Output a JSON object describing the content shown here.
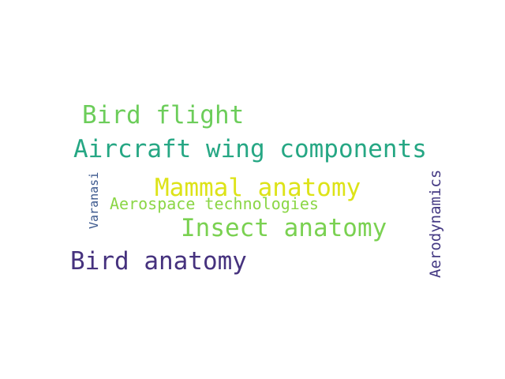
{
  "words": [
    {
      "text": "Bird flight",
      "color": "#6ccd5a"
    },
    {
      "text": "Aircraft wing components",
      "color": "#26a784"
    },
    {
      "text": "Mammal anatomy",
      "color": "#dde318"
    },
    {
      "text": "Aerospace technologies",
      "color": "#8bd646"
    },
    {
      "text": "Insect anatomy",
      "color": "#7ad151"
    },
    {
      "text": "Bird anatomy",
      "color": "#46327e"
    },
    {
      "text": "Varanasi",
      "color": "#39568c"
    },
    {
      "text": "Aerodynamics",
      "color": "#443983"
    }
  ]
}
